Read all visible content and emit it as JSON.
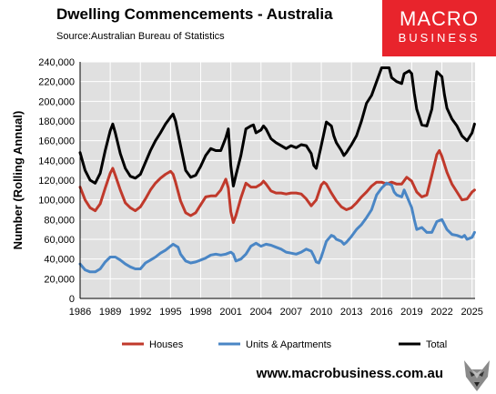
{
  "header": {
    "title": "Dwelling Commencements - Australia",
    "source": "Source:Australian Bureau of Statistics"
  },
  "logo": {
    "line1": "MACRO",
    "line2": "BUSINESS",
    "color": "#e8242c"
  },
  "footer": {
    "url": "www.macrobusiness.com.au",
    "mascot_icon": "wolf-icon"
  },
  "chart_data": {
    "type": "line",
    "title": "",
    "xlabel": "",
    "ylabel": "Number (Rolling Annual)",
    "xlim": [
      1986,
      2025.3
    ],
    "ylim": [
      0,
      240000
    ],
    "yticks": [
      0,
      20000,
      40000,
      60000,
      80000,
      100000,
      120000,
      140000,
      160000,
      180000,
      200000,
      220000,
      240000
    ],
    "ytick_labels": [
      "0",
      "20,000",
      "40,000",
      "60,000",
      "80,000",
      "100,000",
      "120,000",
      "140,000",
      "160,000",
      "180,000",
      "200,000",
      "220,000",
      "240,000"
    ],
    "xticks": [
      1986,
      1989,
      1992,
      1995,
      1998,
      2001,
      2004,
      2007,
      2010,
      2013,
      2016,
      2019,
      2022,
      2025
    ],
    "xtick_labels": [
      "1986",
      "1989",
      "1992",
      "1995",
      "1998",
      "2001",
      "2004",
      "2007",
      "2010",
      "2013",
      "2016",
      "2019",
      "2022",
      "2025"
    ],
    "grid": true,
    "plot_background": "#e0e0e0",
    "legend_position": "bottom",
    "series": [
      {
        "name": "Houses",
        "color": "#c0392b",
        "points": [
          [
            1986,
            113000
          ],
          [
            1986.5,
            100000
          ],
          [
            1987,
            92000
          ],
          [
            1987.5,
            89000
          ],
          [
            1988,
            96000
          ],
          [
            1988.5,
            112000
          ],
          [
            1989,
            127000
          ],
          [
            1989.25,
            132000
          ],
          [
            1989.5,
            125000
          ],
          [
            1990,
            110000
          ],
          [
            1990.5,
            97000
          ],
          [
            1991,
            92000
          ],
          [
            1991.5,
            89000
          ],
          [
            1992,
            93000
          ],
          [
            1992.5,
            101000
          ],
          [
            1993,
            110000
          ],
          [
            1993.5,
            117000
          ],
          [
            1994,
            122000
          ],
          [
            1994.5,
            126000
          ],
          [
            1995,
            129000
          ],
          [
            1995.25,
            126000
          ],
          [
            1995.5,
            118000
          ],
          [
            1996,
            99000
          ],
          [
            1996.5,
            87000
          ],
          [
            1997,
            84000
          ],
          [
            1997.5,
            87000
          ],
          [
            1998,
            95000
          ],
          [
            1998.5,
            103000
          ],
          [
            1999,
            104000
          ],
          [
            1999.5,
            104000
          ],
          [
            2000,
            110000
          ],
          [
            2000.5,
            121000
          ],
          [
            2000.75,
            112000
          ],
          [
            2001,
            88000
          ],
          [
            2001.25,
            77000
          ],
          [
            2001.5,
            84000
          ],
          [
            2002,
            102000
          ],
          [
            2002.5,
            117000
          ],
          [
            2003,
            113000
          ],
          [
            2003.5,
            113000
          ],
          [
            2004,
            116000
          ],
          [
            2004.25,
            119000
          ],
          [
            2004.5,
            116000
          ],
          [
            2005,
            109000
          ],
          [
            2005.5,
            107000
          ],
          [
            2006,
            107000
          ],
          [
            2006.5,
            106000
          ],
          [
            2007,
            107000
          ],
          [
            2007.5,
            107000
          ],
          [
            2008,
            106000
          ],
          [
            2008.5,
            101000
          ],
          [
            2009,
            94000
          ],
          [
            2009.5,
            100000
          ],
          [
            2010,
            115000
          ],
          [
            2010.25,
            118000
          ],
          [
            2010.5,
            116000
          ],
          [
            2011,
            107000
          ],
          [
            2011.5,
            99000
          ],
          [
            2012,
            93000
          ],
          [
            2012.5,
            90000
          ],
          [
            2013,
            92000
          ],
          [
            2013.5,
            97000
          ],
          [
            2014,
            103000
          ],
          [
            2014.5,
            108000
          ],
          [
            2015,
            114000
          ],
          [
            2015.5,
            118000
          ],
          [
            2016,
            118000
          ],
          [
            2016.5,
            116000
          ],
          [
            2017,
            118000
          ],
          [
            2017.5,
            116000
          ],
          [
            2018,
            116000
          ],
          [
            2018.5,
            123000
          ],
          [
            2019,
            119000
          ],
          [
            2019.5,
            108000
          ],
          [
            2020,
            103000
          ],
          [
            2020.5,
            105000
          ],
          [
            2021,
            125000
          ],
          [
            2021.5,
            146000
          ],
          [
            2021.75,
            150000
          ],
          [
            2022,
            144000
          ],
          [
            2022.5,
            128000
          ],
          [
            2023,
            116000
          ],
          [
            2023.5,
            108000
          ],
          [
            2024,
            100000
          ],
          [
            2024.5,
            101000
          ],
          [
            2025,
            108000
          ],
          [
            2025.25,
            110000
          ]
        ]
      },
      {
        "name": "Units & Apartments",
        "color": "#4a86c5",
        "points": [
          [
            1986,
            35000
          ],
          [
            1986.5,
            29000
          ],
          [
            1987,
            27000
          ],
          [
            1987.5,
            27000
          ],
          [
            1988,
            30000
          ],
          [
            1988.5,
            37000
          ],
          [
            1989,
            42000
          ],
          [
            1989.5,
            42000
          ],
          [
            1990,
            39000
          ],
          [
            1990.5,
            35000
          ],
          [
            1991,
            32000
          ],
          [
            1991.5,
            30000
          ],
          [
            1992,
            30000
          ],
          [
            1992.5,
            36000
          ],
          [
            1993,
            39000
          ],
          [
            1993.5,
            42000
          ],
          [
            1994,
            46000
          ],
          [
            1994.5,
            49000
          ],
          [
            1995,
            53000
          ],
          [
            1995.25,
            55000
          ],
          [
            1995.75,
            52000
          ],
          [
            1996,
            45000
          ],
          [
            1996.5,
            38000
          ],
          [
            1997,
            36000
          ],
          [
            1997.5,
            37000
          ],
          [
            1998,
            39000
          ],
          [
            1998.5,
            41000
          ],
          [
            1999,
            44000
          ],
          [
            1999.5,
            45000
          ],
          [
            2000,
            44000
          ],
          [
            2000.5,
            45000
          ],
          [
            2001,
            47000
          ],
          [
            2001.25,
            45000
          ],
          [
            2001.5,
            38000
          ],
          [
            2002,
            40000
          ],
          [
            2002.5,
            45000
          ],
          [
            2003,
            53000
          ],
          [
            2003.5,
            56000
          ],
          [
            2004,
            53000
          ],
          [
            2004.5,
            55000
          ],
          [
            2005,
            54000
          ],
          [
            2005.5,
            52000
          ],
          [
            2006,
            50000
          ],
          [
            2006.5,
            47000
          ],
          [
            2007,
            46000
          ],
          [
            2007.5,
            45000
          ],
          [
            2008,
            47000
          ],
          [
            2008.5,
            50000
          ],
          [
            2009,
            48000
          ],
          [
            2009.25,
            43000
          ],
          [
            2009.5,
            37000
          ],
          [
            2009.75,
            36000
          ],
          [
            2010,
            42000
          ],
          [
            2010.5,
            58000
          ],
          [
            2011,
            64000
          ],
          [
            2011.25,
            63000
          ],
          [
            2011.5,
            60000
          ],
          [
            2012,
            58000
          ],
          [
            2012.25,
            55000
          ],
          [
            2012.5,
            57000
          ],
          [
            2013,
            63000
          ],
          [
            2013.5,
            70000
          ],
          [
            2014,
            75000
          ],
          [
            2014.5,
            82000
          ],
          [
            2015,
            90000
          ],
          [
            2015.5,
            105000
          ],
          [
            2016,
            112000
          ],
          [
            2016.5,
            117000
          ],
          [
            2017,
            115000
          ],
          [
            2017.25,
            108000
          ],
          [
            2017.5,
            105000
          ],
          [
            2018,
            103000
          ],
          [
            2018.25,
            110000
          ],
          [
            2018.5,
            104000
          ],
          [
            2019,
            92000
          ],
          [
            2019.25,
            80000
          ],
          [
            2019.5,
            70000
          ],
          [
            2020,
            72000
          ],
          [
            2020.5,
            67000
          ],
          [
            2021,
            67000
          ],
          [
            2021.5,
            78000
          ],
          [
            2022,
            80000
          ],
          [
            2022.5,
            70000
          ],
          [
            2023,
            65000
          ],
          [
            2023.5,
            64000
          ],
          [
            2024,
            62000
          ],
          [
            2024.25,
            64000
          ],
          [
            2024.5,
            60000
          ],
          [
            2025,
            62000
          ],
          [
            2025.25,
            67000
          ]
        ]
      },
      {
        "name": "Total",
        "color": "#000000",
        "points": [
          [
            1986,
            148000
          ],
          [
            1986.5,
            130000
          ],
          [
            1987,
            120000
          ],
          [
            1987.5,
            117000
          ],
          [
            1988,
            127000
          ],
          [
            1988.5,
            150000
          ],
          [
            1989,
            170000
          ],
          [
            1989.25,
            177000
          ],
          [
            1989.5,
            168000
          ],
          [
            1990,
            147000
          ],
          [
            1990.5,
            132000
          ],
          [
            1991,
            124000
          ],
          [
            1991.5,
            122000
          ],
          [
            1992,
            126000
          ],
          [
            1992.5,
            138000
          ],
          [
            1993,
            150000
          ],
          [
            1993.5,
            160000
          ],
          [
            1994,
            168000
          ],
          [
            1994.5,
            177000
          ],
          [
            1995,
            184000
          ],
          [
            1995.25,
            187000
          ],
          [
            1995.5,
            180000
          ],
          [
            1996,
            155000
          ],
          [
            1996.5,
            130000
          ],
          [
            1997,
            123000
          ],
          [
            1997.5,
            125000
          ],
          [
            1998,
            134000
          ],
          [
            1998.5,
            145000
          ],
          [
            1999,
            152000
          ],
          [
            1999.5,
            150000
          ],
          [
            2000,
            150000
          ],
          [
            2000.5,
            163000
          ],
          [
            2000.75,
            172000
          ],
          [
            2001,
            135000
          ],
          [
            2001.25,
            114000
          ],
          [
            2001.5,
            125000
          ],
          [
            2002,
            145000
          ],
          [
            2002.5,
            172000
          ],
          [
            2003,
            175000
          ],
          [
            2003.25,
            176000
          ],
          [
            2003.5,
            168000
          ],
          [
            2004,
            171000
          ],
          [
            2004.25,
            175000
          ],
          [
            2004.5,
            172000
          ],
          [
            2005,
            162000
          ],
          [
            2005.5,
            158000
          ],
          [
            2006,
            155000
          ],
          [
            2006.5,
            152000
          ],
          [
            2007,
            155000
          ],
          [
            2007.5,
            153000
          ],
          [
            2008,
            156000
          ],
          [
            2008.5,
            155000
          ],
          [
            2009,
            147000
          ],
          [
            2009.25,
            135000
          ],
          [
            2009.5,
            132000
          ],
          [
            2010,
            155000
          ],
          [
            2010.5,
            179000
          ],
          [
            2011,
            175000
          ],
          [
            2011.25,
            165000
          ],
          [
            2011.5,
            158000
          ],
          [
            2012,
            150000
          ],
          [
            2012.25,
            145000
          ],
          [
            2012.5,
            148000
          ],
          [
            2013,
            156000
          ],
          [
            2013.5,
            165000
          ],
          [
            2014,
            180000
          ],
          [
            2014.5,
            198000
          ],
          [
            2015,
            206000
          ],
          [
            2015.5,
            220000
          ],
          [
            2016,
            234000
          ],
          [
            2016.5,
            234000
          ],
          [
            2016.75,
            234000
          ],
          [
            2017,
            224000
          ],
          [
            2017.5,
            220000
          ],
          [
            2018,
            218000
          ],
          [
            2018.25,
            228000
          ],
          [
            2018.75,
            231000
          ],
          [
            2019,
            228000
          ],
          [
            2019.25,
            208000
          ],
          [
            2019.5,
            192000
          ],
          [
            2020,
            176000
          ],
          [
            2020.5,
            175000
          ],
          [
            2021,
            192000
          ],
          [
            2021.25,
            212000
          ],
          [
            2021.5,
            230000
          ],
          [
            2022,
            225000
          ],
          [
            2022.25,
            207000
          ],
          [
            2022.5,
            193000
          ],
          [
            2023,
            182000
          ],
          [
            2023.5,
            175000
          ],
          [
            2024,
            165000
          ],
          [
            2024.5,
            160000
          ],
          [
            2025,
            168000
          ],
          [
            2025.25,
            177000
          ]
        ]
      }
    ]
  }
}
